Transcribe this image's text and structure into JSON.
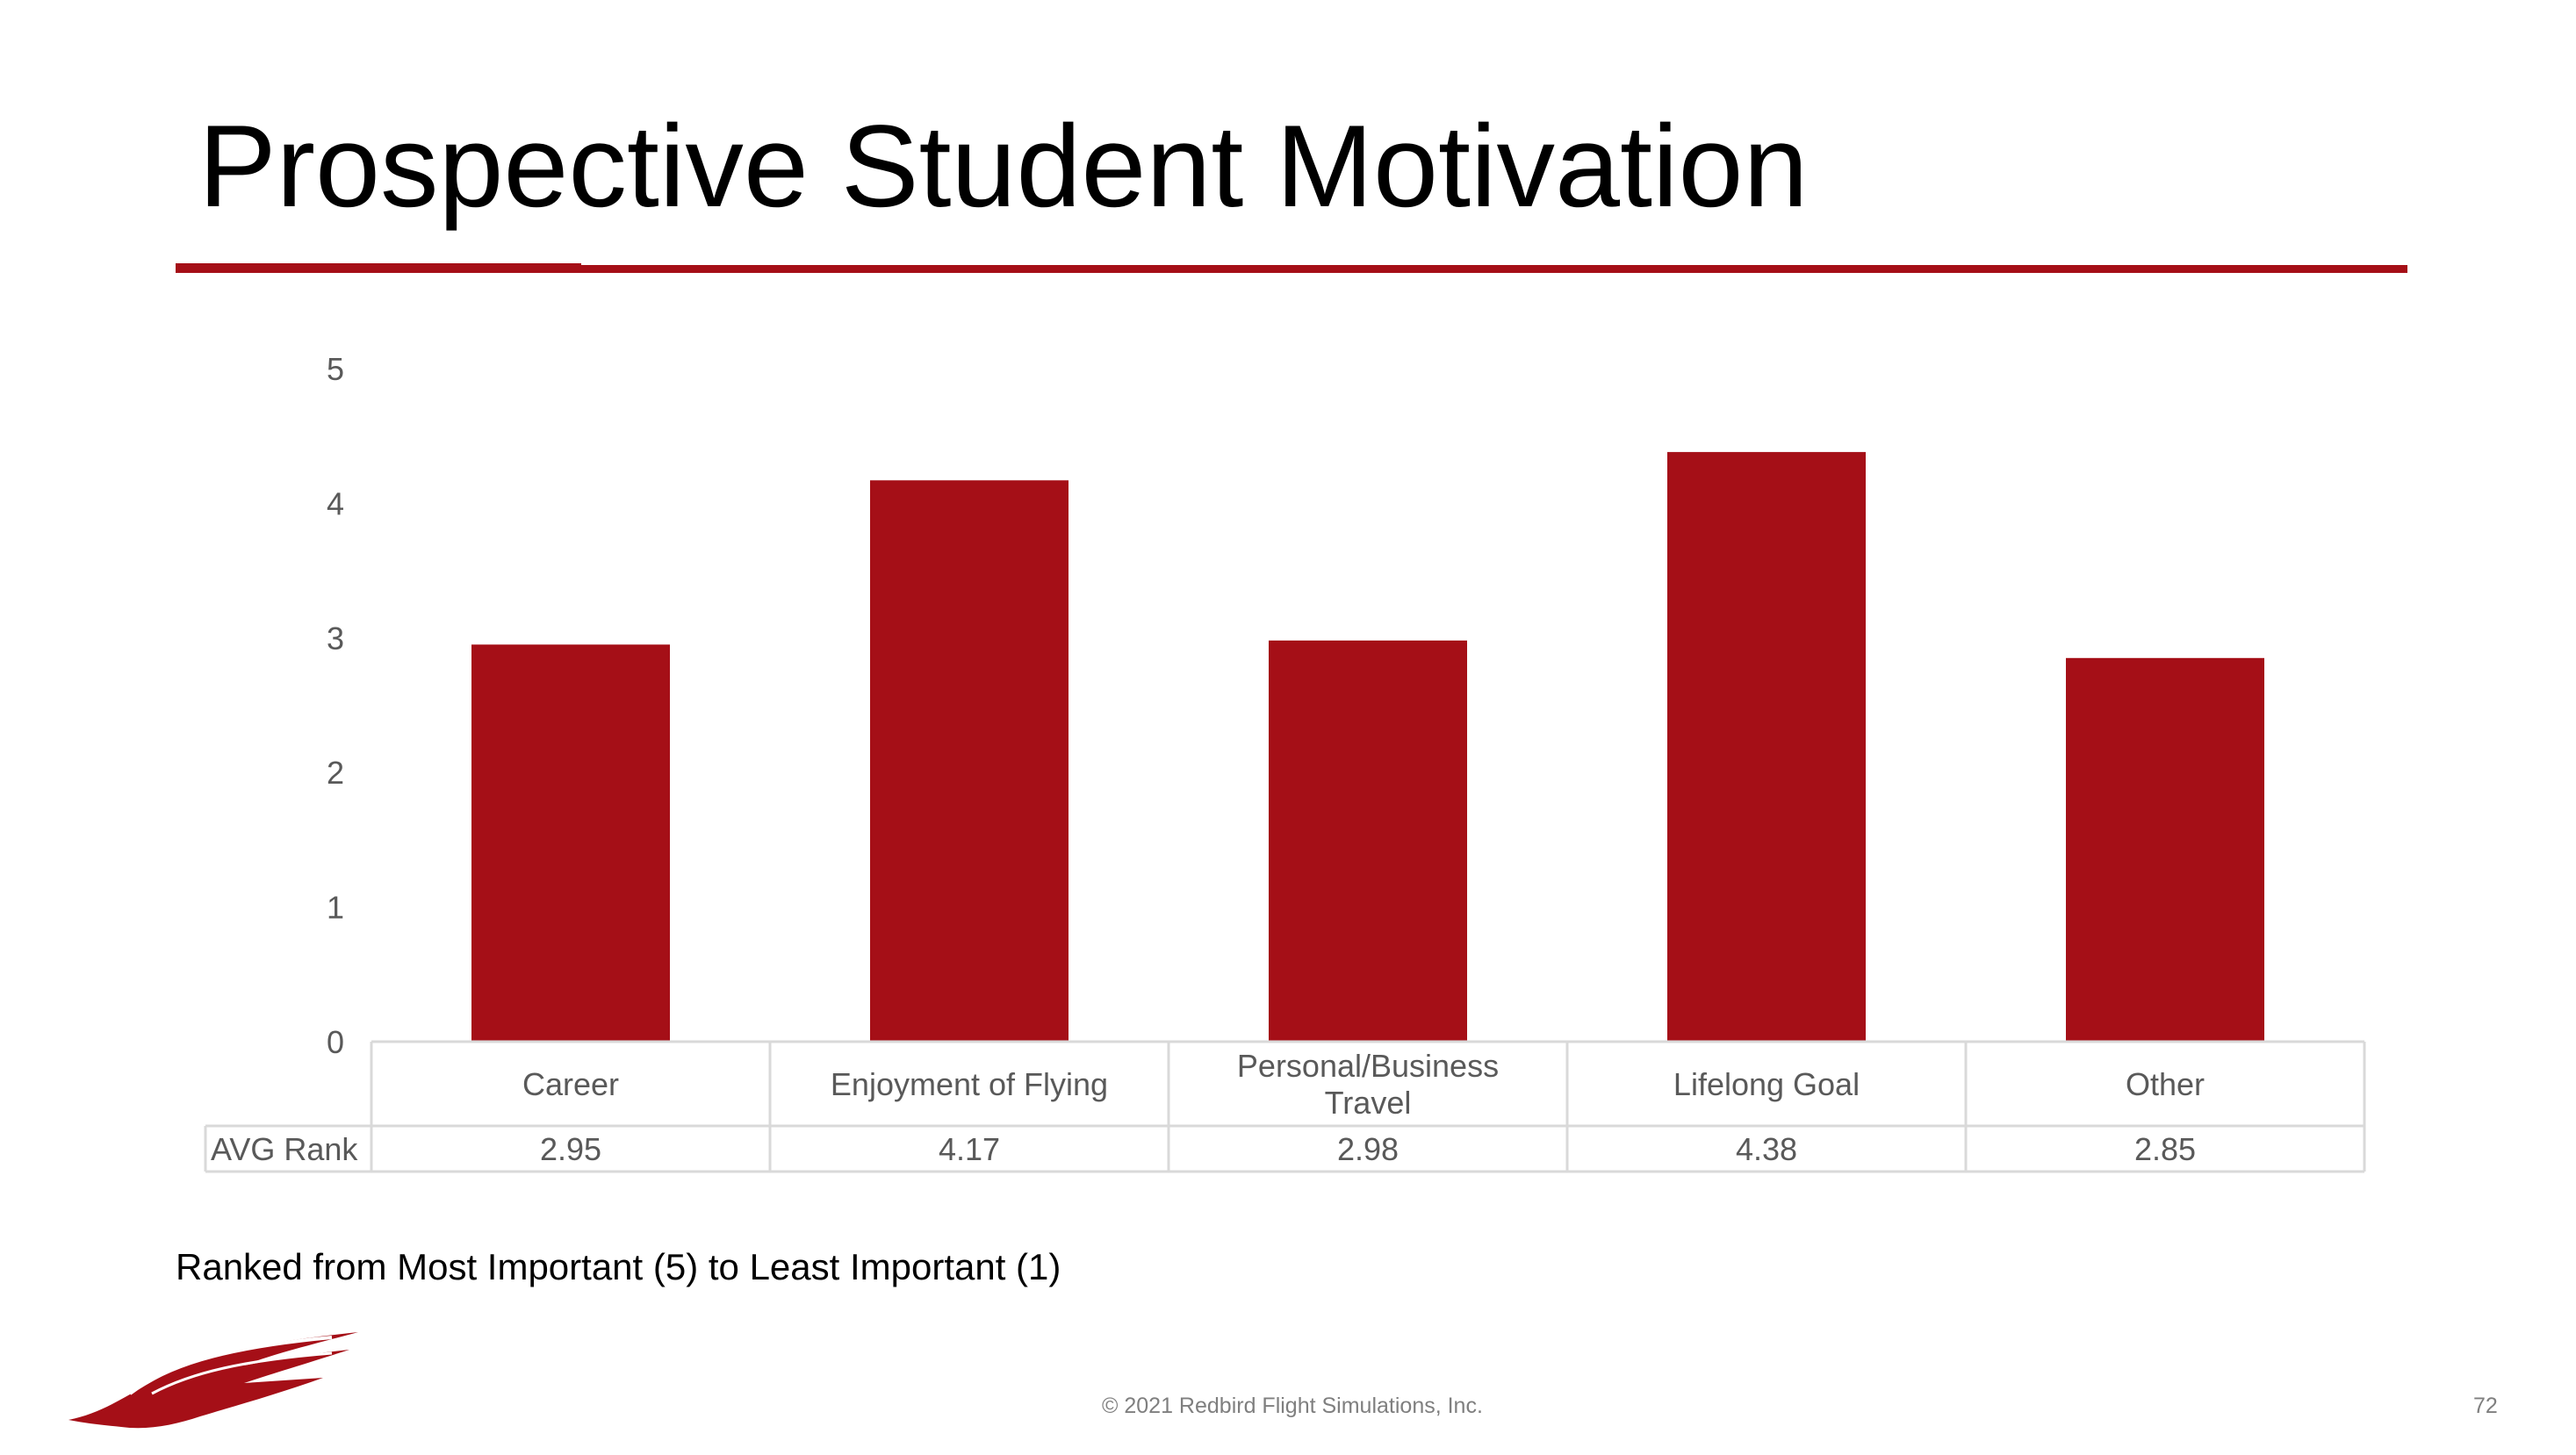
{
  "slide": {
    "title": "Prospective Student Motivation",
    "note": "Ranked from Most Important (5) to Least Important (1)",
    "footer": "© 2021 Redbird Flight Simulations, Inc.",
    "page_number": "72"
  },
  "colors": {
    "brand": "#a50f17",
    "bar": "#a50f17",
    "axis_text": "#595959",
    "table_border": "#d9d9d9"
  },
  "chart_data": {
    "type": "bar",
    "categories": [
      "Career",
      "Enjoyment of Flying",
      "Personal/Business Travel",
      "Lifelong Goal",
      "Other"
    ],
    "category_lines": [
      [
        "Career"
      ],
      [
        "Enjoyment of Flying"
      ],
      [
        "Personal/Business",
        "Travel"
      ],
      [
        "Lifelong Goal"
      ],
      [
        "Other"
      ]
    ],
    "series": [
      {
        "name": "AVG Rank",
        "values": [
          2.95,
          4.17,
          2.98,
          4.38,
          2.85
        ]
      }
    ],
    "value_labels": [
      "2.95",
      "4.17",
      "2.98",
      "4.38",
      "2.85"
    ],
    "ylim": [
      0,
      5
    ],
    "yticks": [
      0,
      1,
      2,
      3,
      4,
      5
    ],
    "grid": false,
    "data_table": true
  }
}
